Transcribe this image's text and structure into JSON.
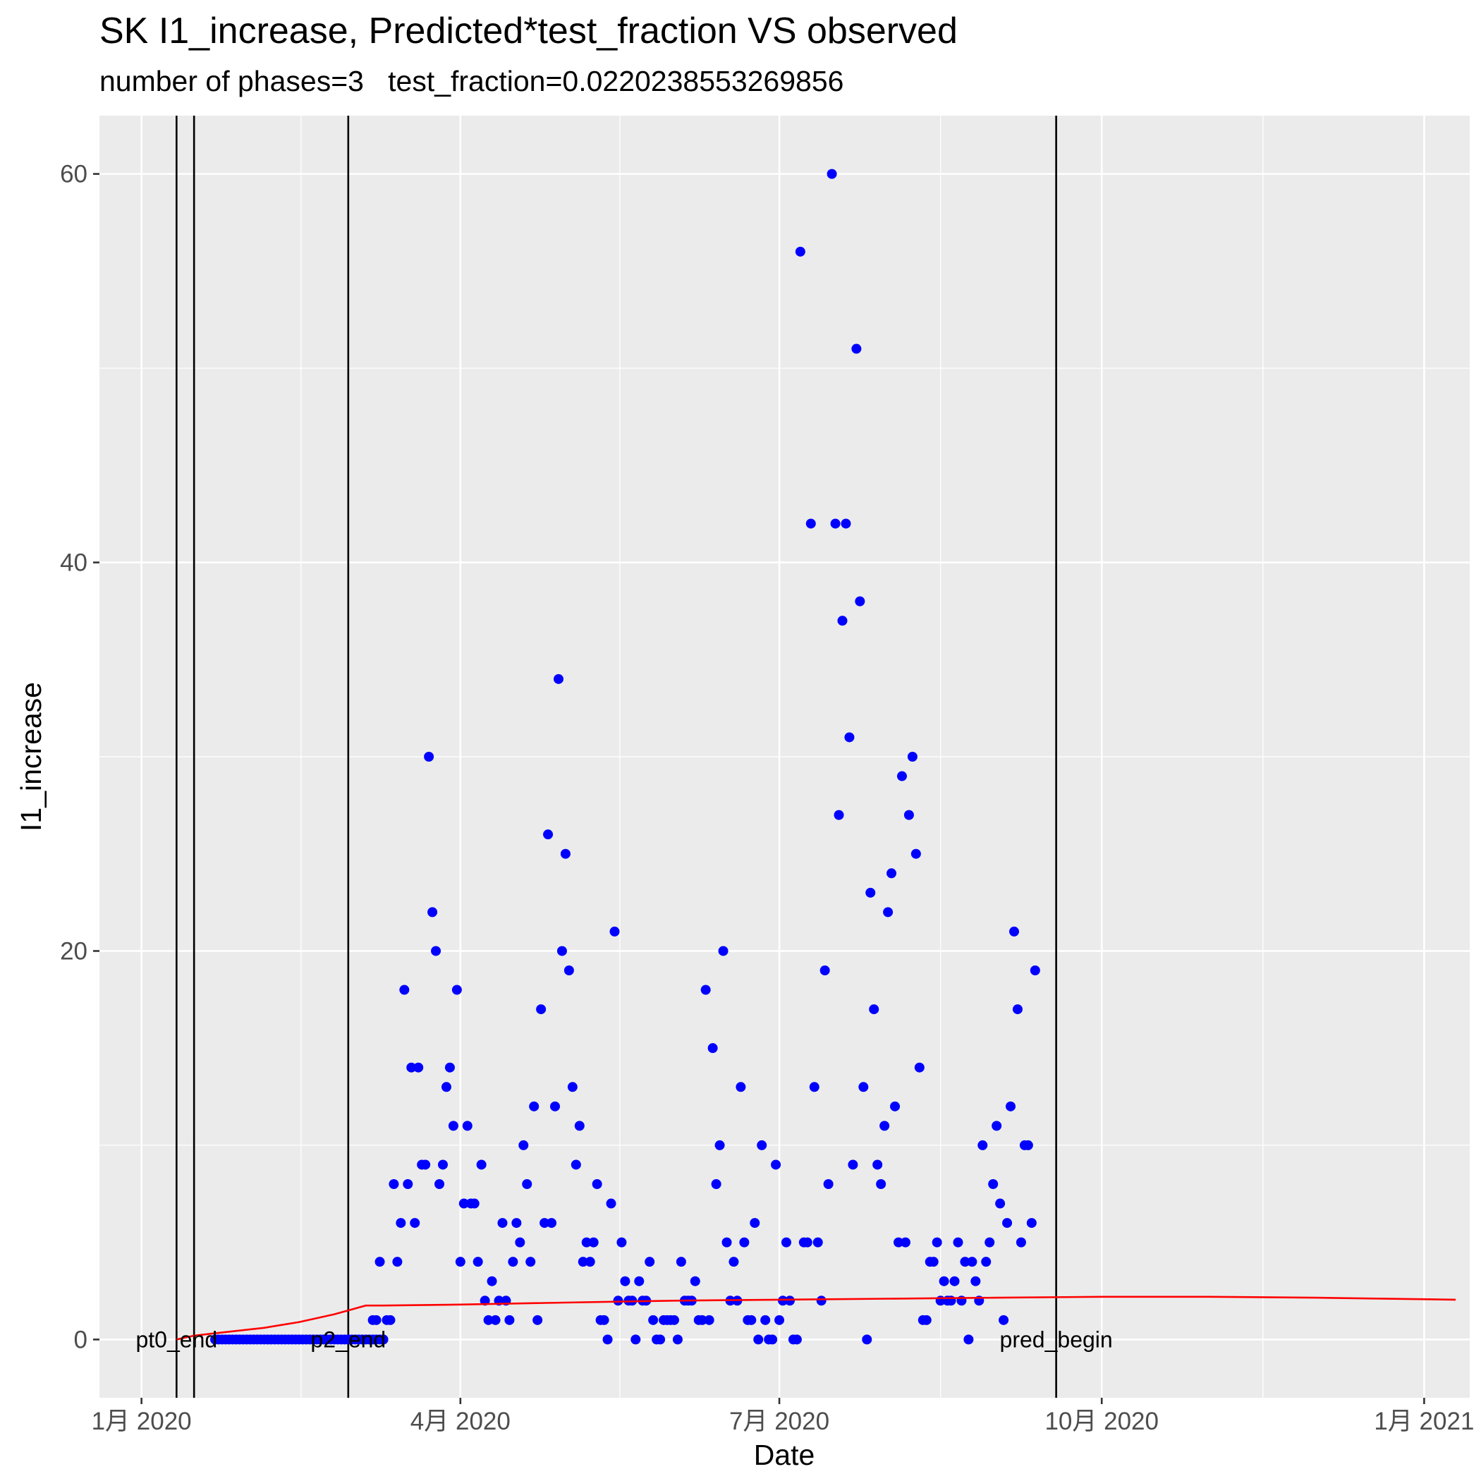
{
  "chart_data": {
    "type": "scatter",
    "title": "SK I1_increase, Predicted*test_fraction VS observed",
    "subtitle": "number of phases=3   test_fraction=0.0220238553269856",
    "xlabel": "Date",
    "ylabel": "I1_increase",
    "xlim": [
      "2019-12-20",
      "2021-01-14"
    ],
    "ylim": [
      -3,
      63
    ],
    "x_ticks": [
      {
        "value": "2020-01-01",
        "label": "1月 2020"
      },
      {
        "value": "2020-04-01",
        "label": "4月 2020"
      },
      {
        "value": "2020-07-01",
        "label": "7月 2020"
      },
      {
        "value": "2020-10-01",
        "label": "10月 2020"
      },
      {
        "value": "2021-01-01",
        "label": "1月 2021"
      }
    ],
    "y_ticks": [
      0,
      20,
      40,
      60
    ],
    "grid": true,
    "colors": {
      "panel": "#ebebeb",
      "grid": "#ffffff",
      "observed": "#0000ff",
      "predicted": "#ff0000",
      "vline": "#000000"
    },
    "vlines": [
      {
        "x": "2020-01-11",
        "label": "pt0_end"
      },
      {
        "x": "2020-01-16",
        "label": ""
      },
      {
        "x": "2020-02-29",
        "label": "p2_end"
      },
      {
        "x": "2020-09-18",
        "label": "pred_begin"
      }
    ],
    "series": [
      {
        "name": "",
        "kind": "points",
        "color": "#0000ff",
        "points": [
          [
            "2020-01-22",
            0
          ],
          [
            "2020-01-23",
            0
          ],
          [
            "2020-01-24",
            0
          ],
          [
            "2020-01-25",
            0
          ],
          [
            "2020-01-26",
            0
          ],
          [
            "2020-01-27",
            0
          ],
          [
            "2020-01-28",
            0
          ],
          [
            "2020-01-29",
            0
          ],
          [
            "2020-01-30",
            0
          ],
          [
            "2020-01-31",
            0
          ],
          [
            "2020-02-01",
            0
          ],
          [
            "2020-02-02",
            0
          ],
          [
            "2020-02-03",
            0
          ],
          [
            "2020-02-04",
            0
          ],
          [
            "2020-02-05",
            0
          ],
          [
            "2020-02-06",
            0
          ],
          [
            "2020-02-07",
            0
          ],
          [
            "2020-02-08",
            0
          ],
          [
            "2020-02-09",
            0
          ],
          [
            "2020-02-10",
            0
          ],
          [
            "2020-02-11",
            0
          ],
          [
            "2020-02-12",
            0
          ],
          [
            "2020-02-13",
            0
          ],
          [
            "2020-02-14",
            0
          ],
          [
            "2020-02-15",
            0
          ],
          [
            "2020-02-16",
            0
          ],
          [
            "2020-02-17",
            0
          ],
          [
            "2020-02-18",
            0
          ],
          [
            "2020-02-19",
            0
          ],
          [
            "2020-02-20",
            0
          ],
          [
            "2020-02-21",
            0
          ],
          [
            "2020-02-22",
            0
          ],
          [
            "2020-02-23",
            0
          ],
          [
            "2020-02-24",
            0
          ],
          [
            "2020-02-25",
            0
          ],
          [
            "2020-02-26",
            0
          ],
          [
            "2020-02-27",
            0
          ],
          [
            "2020-02-28",
            0
          ],
          [
            "2020-02-29",
            0
          ],
          [
            "2020-03-01",
            0
          ],
          [
            "2020-03-02",
            0
          ],
          [
            "2020-03-03",
            0
          ],
          [
            "2020-03-04",
            0
          ],
          [
            "2020-03-05",
            0
          ],
          [
            "2020-03-06",
            0
          ],
          [
            "2020-03-07",
            0
          ],
          [
            "2020-03-08",
            0
          ],
          [
            "2020-03-09",
            0
          ],
          [
            "2020-03-10",
            0
          ],
          [
            "2020-03-07",
            1
          ],
          [
            "2020-03-08",
            1
          ],
          [
            "2020-03-09",
            4
          ],
          [
            "2020-03-10",
            0
          ],
          [
            "2020-03-11",
            1
          ],
          [
            "2020-03-12",
            1
          ],
          [
            "2020-03-13",
            8
          ],
          [
            "2020-03-14",
            4
          ],
          [
            "2020-03-15",
            6
          ],
          [
            "2020-03-16",
            18
          ],
          [
            "2020-03-17",
            8
          ],
          [
            "2020-03-18",
            14
          ],
          [
            "2020-03-19",
            6
          ],
          [
            "2020-03-20",
            14
          ],
          [
            "2020-03-21",
            9
          ],
          [
            "2020-03-22",
            9
          ],
          [
            "2020-03-23",
            30
          ],
          [
            "2020-03-24",
            22
          ],
          [
            "2020-03-25",
            20
          ],
          [
            "2020-03-26",
            8
          ],
          [
            "2020-03-27",
            9
          ],
          [
            "2020-03-28",
            13
          ],
          [
            "2020-03-29",
            14
          ],
          [
            "2020-03-30",
            11
          ],
          [
            "2020-03-31",
            18
          ],
          [
            "2020-04-01",
            4
          ],
          [
            "2020-04-02",
            7
          ],
          [
            "2020-04-03",
            11
          ],
          [
            "2020-04-04",
            7
          ],
          [
            "2020-04-05",
            7
          ],
          [
            "2020-04-06",
            4
          ],
          [
            "2020-04-07",
            9
          ],
          [
            "2020-04-08",
            2
          ],
          [
            "2020-04-09",
            1
          ],
          [
            "2020-04-10",
            3
          ],
          [
            "2020-04-11",
            1
          ],
          [
            "2020-04-12",
            2
          ],
          [
            "2020-04-13",
            6
          ],
          [
            "2020-04-14",
            2
          ],
          [
            "2020-04-15",
            1
          ],
          [
            "2020-04-16",
            4
          ],
          [
            "2020-04-17",
            6
          ],
          [
            "2020-04-18",
            5
          ],
          [
            "2020-04-19",
            10
          ],
          [
            "2020-04-20",
            8
          ],
          [
            "2020-04-21",
            4
          ],
          [
            "2020-04-22",
            12
          ],
          [
            "2020-04-23",
            1
          ],
          [
            "2020-04-24",
            17
          ],
          [
            "2020-04-25",
            6
          ],
          [
            "2020-04-26",
            26
          ],
          [
            "2020-04-27",
            6
          ],
          [
            "2020-04-28",
            12
          ],
          [
            "2020-04-29",
            34
          ],
          [
            "2020-04-30",
            20
          ],
          [
            "2020-05-01",
            25
          ],
          [
            "2020-05-02",
            19
          ],
          [
            "2020-05-03",
            13
          ],
          [
            "2020-05-04",
            9
          ],
          [
            "2020-05-05",
            11
          ],
          [
            "2020-05-06",
            4
          ],
          [
            "2020-05-07",
            5
          ],
          [
            "2020-05-08",
            4
          ],
          [
            "2020-05-09",
            5
          ],
          [
            "2020-05-10",
            8
          ],
          [
            "2020-05-11",
            1
          ],
          [
            "2020-05-12",
            1
          ],
          [
            "2020-05-13",
            0
          ],
          [
            "2020-05-14",
            7
          ],
          [
            "2020-05-15",
            21
          ],
          [
            "2020-05-16",
            2
          ],
          [
            "2020-05-17",
            5
          ],
          [
            "2020-05-18",
            3
          ],
          [
            "2020-05-19",
            2
          ],
          [
            "2020-05-20",
            2
          ],
          [
            "2020-05-21",
            0
          ],
          [
            "2020-05-22",
            3
          ],
          [
            "2020-05-23",
            2
          ],
          [
            "2020-05-24",
            2
          ],
          [
            "2020-05-25",
            4
          ],
          [
            "2020-05-26",
            1
          ],
          [
            "2020-05-27",
            0
          ],
          [
            "2020-05-28",
            0
          ],
          [
            "2020-05-29",
            1
          ],
          [
            "2020-05-30",
            1
          ],
          [
            "2020-05-31",
            1
          ],
          [
            "2020-06-01",
            1
          ],
          [
            "2020-06-02",
            0
          ],
          [
            "2020-06-03",
            4
          ],
          [
            "2020-06-04",
            2
          ],
          [
            "2020-06-05",
            2
          ],
          [
            "2020-06-06",
            2
          ],
          [
            "2020-06-07",
            3
          ],
          [
            "2020-06-08",
            1
          ],
          [
            "2020-06-09",
            1
          ],
          [
            "2020-06-10",
            18
          ],
          [
            "2020-06-11",
            1
          ],
          [
            "2020-06-12",
            15
          ],
          [
            "2020-06-13",
            8
          ],
          [
            "2020-06-14",
            10
          ],
          [
            "2020-06-15",
            20
          ],
          [
            "2020-06-16",
            5
          ],
          [
            "2020-06-17",
            2
          ],
          [
            "2020-06-18",
            4
          ],
          [
            "2020-06-19",
            2
          ],
          [
            "2020-06-20",
            13
          ],
          [
            "2020-06-21",
            5
          ],
          [
            "2020-06-22",
            1
          ],
          [
            "2020-06-23",
            1
          ],
          [
            "2020-06-24",
            6
          ],
          [
            "2020-06-25",
            0
          ],
          [
            "2020-06-26",
            10
          ],
          [
            "2020-06-27",
            1
          ],
          [
            "2020-06-28",
            0
          ],
          [
            "2020-06-29",
            0
          ],
          [
            "2020-06-30",
            9
          ],
          [
            "2020-07-01",
            1
          ],
          [
            "2020-07-02",
            2
          ],
          [
            "2020-07-03",
            5
          ],
          [
            "2020-07-04",
            2
          ],
          [
            "2020-07-05",
            0
          ],
          [
            "2020-07-06",
            0
          ],
          [
            "2020-07-07",
            56
          ],
          [
            "2020-07-08",
            5
          ],
          [
            "2020-07-09",
            5
          ],
          [
            "2020-07-10",
            42
          ],
          [
            "2020-07-11",
            13
          ],
          [
            "2020-07-12",
            5
          ],
          [
            "2020-07-13",
            2
          ],
          [
            "2020-07-14",
            19
          ],
          [
            "2020-07-15",
            8
          ],
          [
            "2020-07-16",
            60
          ],
          [
            "2020-07-17",
            42
          ],
          [
            "2020-07-18",
            27
          ],
          [
            "2020-07-19",
            37
          ],
          [
            "2020-07-20",
            42
          ],
          [
            "2020-07-21",
            31
          ],
          [
            "2020-07-22",
            9
          ],
          [
            "2020-07-23",
            51
          ],
          [
            "2020-07-24",
            38
          ],
          [
            "2020-07-25",
            13
          ],
          [
            "2020-07-26",
            0
          ],
          [
            "2020-07-27",
            23
          ],
          [
            "2020-07-28",
            17
          ],
          [
            "2020-07-29",
            9
          ],
          [
            "2020-07-30",
            8
          ],
          [
            "2020-07-31",
            11
          ],
          [
            "2020-08-01",
            22
          ],
          [
            "2020-08-02",
            24
          ],
          [
            "2020-08-03",
            12
          ],
          [
            "2020-08-04",
            5
          ],
          [
            "2020-08-05",
            29
          ],
          [
            "2020-08-06",
            5
          ],
          [
            "2020-08-07",
            27
          ],
          [
            "2020-08-08",
            30
          ],
          [
            "2020-08-09",
            25
          ],
          [
            "2020-08-10",
            14
          ],
          [
            "2020-08-11",
            1
          ],
          [
            "2020-08-12",
            1
          ],
          [
            "2020-08-13",
            4
          ],
          [
            "2020-08-14",
            4
          ],
          [
            "2020-08-15",
            5
          ],
          [
            "2020-08-16",
            2
          ],
          [
            "2020-08-17",
            3
          ],
          [
            "2020-08-18",
            2
          ],
          [
            "2020-08-19",
            2
          ],
          [
            "2020-08-20",
            3
          ],
          [
            "2020-08-21",
            5
          ],
          [
            "2020-08-22",
            2
          ],
          [
            "2020-08-23",
            4
          ],
          [
            "2020-08-24",
            0
          ],
          [
            "2020-08-25",
            4
          ],
          [
            "2020-08-26",
            3
          ],
          [
            "2020-08-27",
            2
          ],
          [
            "2020-08-28",
            10
          ],
          [
            "2020-08-29",
            4
          ],
          [
            "2020-08-30",
            5
          ],
          [
            "2020-08-31",
            8
          ],
          [
            "2020-09-01",
            11
          ],
          [
            "2020-09-02",
            7
          ],
          [
            "2020-09-03",
            1
          ],
          [
            "2020-09-04",
            6
          ],
          [
            "2020-09-05",
            12
          ],
          [
            "2020-09-06",
            21
          ],
          [
            "2020-09-07",
            17
          ],
          [
            "2020-09-08",
            5
          ],
          [
            "2020-09-09",
            10
          ],
          [
            "2020-09-10",
            10
          ],
          [
            "2020-09-11",
            6
          ],
          [
            "2020-09-12",
            19
          ]
        ]
      },
      {
        "name": "",
        "kind": "line",
        "color": "#ff0000",
        "points": [
          [
            "2020-01-11",
            0
          ],
          [
            "2020-01-16",
            0.2
          ],
          [
            "2020-01-21",
            0.3
          ],
          [
            "2020-01-26",
            0.4
          ],
          [
            "2020-01-31",
            0.5
          ],
          [
            "2020-02-05",
            0.6
          ],
          [
            "2020-02-10",
            0.75
          ],
          [
            "2020-02-15",
            0.9
          ],
          [
            "2020-02-20",
            1.1
          ],
          [
            "2020-02-25",
            1.3
          ],
          [
            "2020-03-01",
            1.55
          ],
          [
            "2020-03-05",
            1.75
          ],
          [
            "2020-03-10",
            1.75
          ],
          [
            "2020-04-01",
            1.8
          ],
          [
            "2020-05-01",
            1.9
          ],
          [
            "2020-06-01",
            2.0
          ],
          [
            "2020-07-01",
            2.05
          ],
          [
            "2020-08-01",
            2.1
          ],
          [
            "2020-09-01",
            2.15
          ],
          [
            "2020-10-01",
            2.2
          ],
          [
            "2020-11-01",
            2.2
          ],
          [
            "2020-12-01",
            2.15
          ],
          [
            "2021-01-10",
            2.05
          ]
        ]
      }
    ]
  }
}
